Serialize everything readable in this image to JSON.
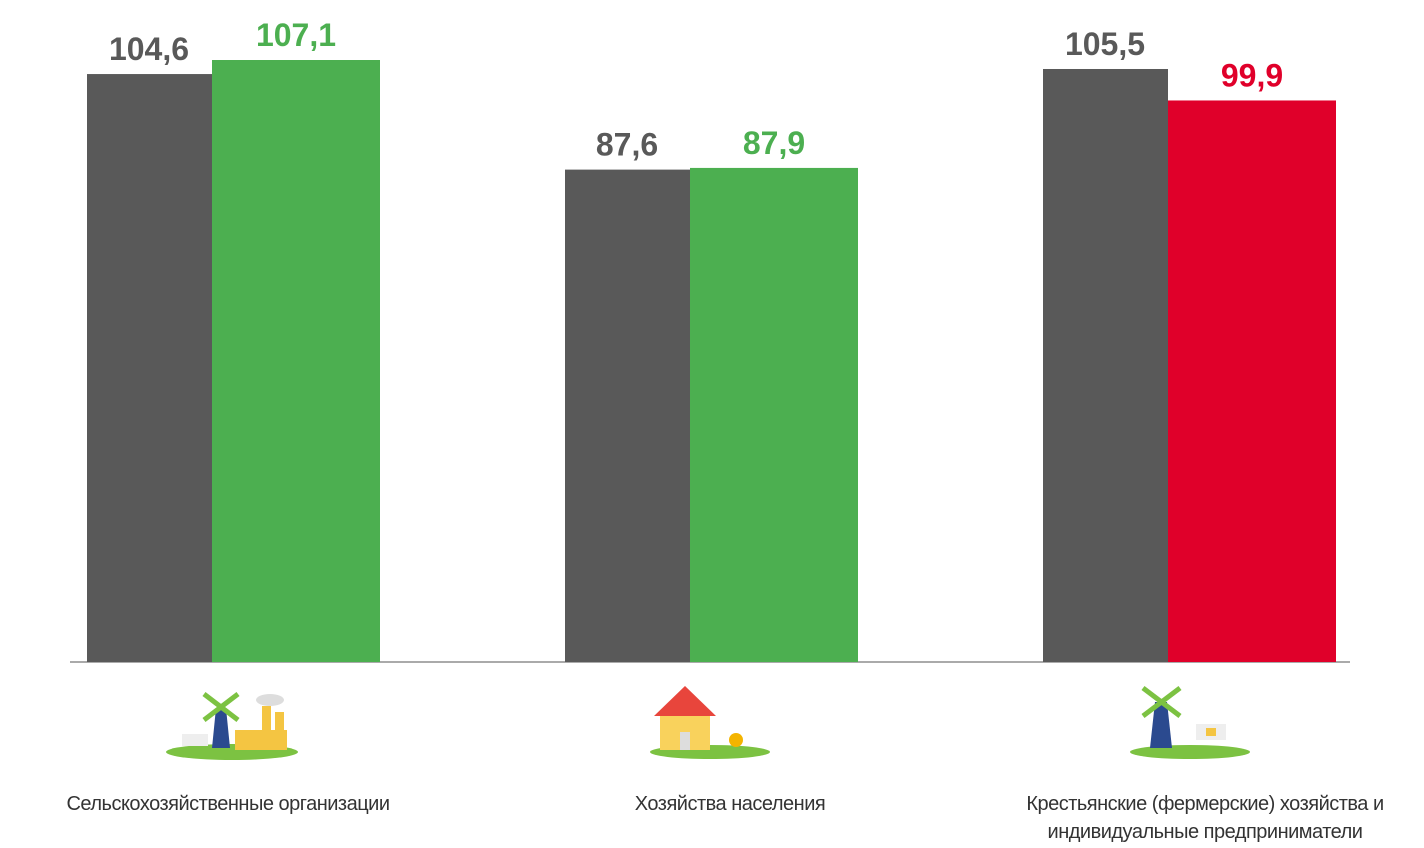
{
  "chart_data": {
    "type": "bar",
    "categories": [
      "Сельскохозяйственные организации",
      "Хозяйства населения",
      "Крестьянские (фермерские) хозяйства и индивидуальные предприниматели"
    ],
    "series": [
      {
        "color": "#595959",
        "values": [
          104.6,
          87.6,
          105.5
        ],
        "value_labels": [
          "104,6",
          "87,6",
          "105,5"
        ]
      },
      {
        "colors": [
          "#4caf50",
          "#4caf50",
          "#e0002a"
        ],
        "values": [
          107.1,
          87.9,
          99.9
        ],
        "value_labels": [
          "107,1",
          "87,9",
          "99,9"
        ]
      }
    ]
  }
}
